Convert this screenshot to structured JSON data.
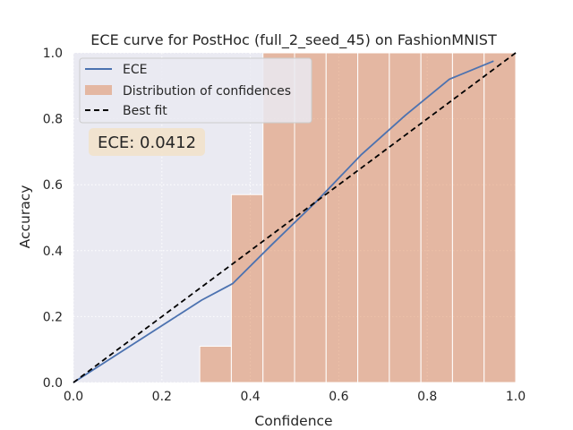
{
  "chart_data": {
    "type": "bar",
    "title": "ECE curve for PostHoc (full_2_seed_45) on FashionMNIST",
    "xlabel": "Confidence",
    "ylabel": "Accuracy",
    "xlim": [
      0.0,
      1.0
    ],
    "ylim": [
      0.0,
      1.0
    ],
    "x_ticks": [
      "0.0",
      "0.2",
      "0.4",
      "0.6",
      "0.8",
      "1.0"
    ],
    "y_ticks": [
      "0.0",
      "0.2",
      "0.4",
      "0.6",
      "0.8",
      "1.0"
    ],
    "grid": true,
    "legend_position": "top-left",
    "histogram": {
      "name": "Distribution of confidences",
      "color": "#dd8452",
      "bins": [
        {
          "x0": 0.2857,
          "x1": 0.3571,
          "value": 0.11
        },
        {
          "x0": 0.3571,
          "x1": 0.4286,
          "value": 0.57
        },
        {
          "x0": 0.4286,
          "x1": 0.5,
          "value": 1.0
        },
        {
          "x0": 0.5,
          "x1": 0.5714,
          "value": 1.0
        },
        {
          "x0": 0.5714,
          "x1": 0.6429,
          "value": 1.0
        },
        {
          "x0": 0.6429,
          "x1": 0.7143,
          "value": 1.0
        },
        {
          "x0": 0.7143,
          "x1": 0.7857,
          "value": 1.0
        },
        {
          "x0": 0.7857,
          "x1": 0.8571,
          "value": 1.0
        },
        {
          "x0": 0.8571,
          "x1": 0.9286,
          "value": 1.0
        },
        {
          "x0": 0.9286,
          "x1": 1.0,
          "value": 1.0
        }
      ]
    },
    "series": [
      {
        "name": "ECE",
        "color": "#4c72b0",
        "x": [
          0.0,
          0.29,
          0.36,
          0.45,
          0.55,
          0.65,
          0.75,
          0.85,
          0.95
        ],
        "y": [
          0.0,
          0.25,
          0.3,
          0.42,
          0.55,
          0.69,
          0.81,
          0.92,
          0.975
        ]
      },
      {
        "name": "Best fit",
        "color": "#000000",
        "dashed": true,
        "x": [
          0.0,
          1.0
        ],
        "y": [
          0.0,
          1.0
        ]
      }
    ],
    "annotation": {
      "text": "ECE: 0.0412"
    }
  }
}
